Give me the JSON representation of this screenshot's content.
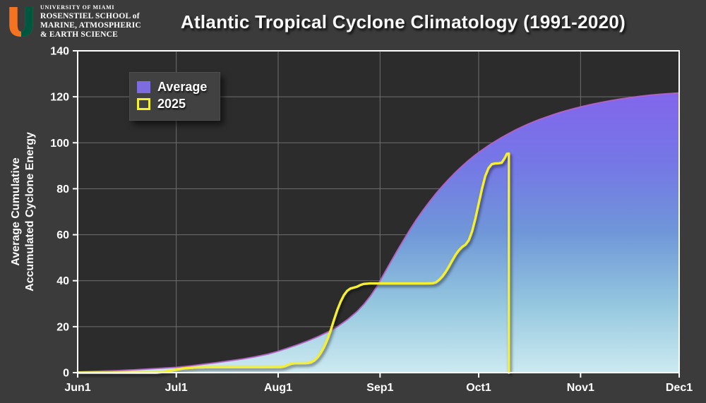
{
  "header": {
    "logo": {
      "university": "UNIVERSITY OF MIAMI",
      "school_line1": "ROSENSTIEL SCHOOL of",
      "school_line2": "MARINE, ATMOSPHERIC",
      "school_line3": "& EARTH SCIENCE",
      "orange": "#f47321",
      "green": "#00573f"
    },
    "title": "Atlantic Tropical Cyclone Climatology (1991-2020)"
  },
  "chart_data": {
    "type": "area",
    "title": "Atlantic Tropical Cyclone Climatology (1991-2020)",
    "ylabel_lines": [
      "Average Cumulative",
      "Accumulated Cyclone Energy"
    ],
    "xlabel": "",
    "x_units": "days since Jun 1",
    "xlim": [
      0,
      183
    ],
    "ylim": [
      0,
      140
    ],
    "x_ticks": [
      {
        "day": 0,
        "label": "Jun1"
      },
      {
        "day": 30,
        "label": "Jul1"
      },
      {
        "day": 61,
        "label": "Aug1"
      },
      {
        "day": 92,
        "label": "Sep1"
      },
      {
        "day": 122,
        "label": "Oct1"
      },
      {
        "day": 153,
        "label": "Nov1"
      },
      {
        "day": 183,
        "label": "Dec1"
      }
    ],
    "y_ticks": [
      0,
      20,
      40,
      60,
      80,
      100,
      120,
      140
    ],
    "grid": true,
    "legend_position": "top-left",
    "colors": {
      "figure_background": "#3b3b3b",
      "plot_background": "#2c2c2c",
      "grid": "#6f6f6f",
      "axis": "#ffffff",
      "tick_text": "#ffffff",
      "area_edge": "#b863c8",
      "line_2025": "#f5ef30",
      "legend_swatch_average": "#7d6ce0",
      "area_gradient": [
        {
          "offset": 0,
          "color": "#8266ec"
        },
        {
          "offset": 0.25,
          "color": "#7577e6"
        },
        {
          "offset": 0.5,
          "color": "#6f97d8"
        },
        {
          "offset": 0.75,
          "color": "#93c6de"
        },
        {
          "offset": 1,
          "color": "#cdeaf1"
        }
      ]
    },
    "series": [
      {
        "name": "Average",
        "type": "area",
        "points": [
          [
            0,
            0.3
          ],
          [
            6,
            0.6
          ],
          [
            12,
            0.9
          ],
          [
            18,
            1.3
          ],
          [
            24,
            1.8
          ],
          [
            30,
            2.3
          ],
          [
            34,
            2.9
          ],
          [
            38,
            3.6
          ],
          [
            42,
            4.3
          ],
          [
            46,
            5.1
          ],
          [
            50,
            5.9
          ],
          [
            54,
            6.9
          ],
          [
            58,
            8.1
          ],
          [
            61,
            9.3
          ],
          [
            64,
            10.7
          ],
          [
            67,
            12.2
          ],
          [
            70,
            13.8
          ],
          [
            73,
            15.6
          ],
          [
            76,
            17.6
          ],
          [
            79,
            20.0
          ],
          [
            82,
            23.0
          ],
          [
            85,
            26.6
          ],
          [
            87,
            29.6
          ],
          [
            89,
            33.2
          ],
          [
            91,
            37.4
          ],
          [
            93,
            42.5
          ],
          [
            95,
            47.5
          ],
          [
            97,
            52.5
          ],
          [
            99,
            57.3
          ],
          [
            101,
            62.0
          ],
          [
            103,
            66.4
          ],
          [
            105,
            70.5
          ],
          [
            107,
            74.3
          ],
          [
            109,
            77.9
          ],
          [
            111,
            81.2
          ],
          [
            113,
            84.3
          ],
          [
            115,
            87.2
          ],
          [
            117,
            89.9
          ],
          [
            119,
            92.4
          ],
          [
            121,
            94.7
          ],
          [
            123,
            96.8
          ],
          [
            125,
            98.8
          ],
          [
            127,
            100.6
          ],
          [
            129,
            102.3
          ],
          [
            131,
            103.9
          ],
          [
            133,
            105.4
          ],
          [
            135,
            106.8
          ],
          [
            137,
            108.1
          ],
          [
            139,
            109.3
          ],
          [
            141,
            110.4
          ],
          [
            143,
            111.4
          ],
          [
            145,
            112.4
          ],
          [
            147,
            113.3
          ],
          [
            149,
            114.1
          ],
          [
            151,
            114.9
          ],
          [
            153,
            115.6
          ],
          [
            156,
            116.6
          ],
          [
            159,
            117.5
          ],
          [
            162,
            118.3
          ],
          [
            165,
            119.0
          ],
          [
            168,
            119.6
          ],
          [
            171,
            120.2
          ],
          [
            174,
            120.7
          ],
          [
            177,
            121.1
          ],
          [
            180,
            121.4
          ],
          [
            183,
            121.7
          ]
        ]
      },
      {
        "name": "2025",
        "type": "line",
        "points": [
          [
            0,
            0
          ],
          [
            24,
            0
          ],
          [
            26,
            0.3
          ],
          [
            28,
            0.8
          ],
          [
            30,
            1.3
          ],
          [
            32,
            1.8
          ],
          [
            34,
            2.1
          ],
          [
            36,
            2.3
          ],
          [
            40,
            2.4
          ],
          [
            48,
            2.4
          ],
          [
            56,
            2.4
          ],
          [
            62,
            2.5
          ],
          [
            63,
            2.8
          ],
          [
            64,
            3.4
          ],
          [
            65,
            3.9
          ],
          [
            66,
            4.1
          ],
          [
            68,
            4.1
          ],
          [
            70,
            4.2
          ],
          [
            71,
            4.5
          ],
          [
            72,
            5.3
          ],
          [
            73,
            6.7
          ],
          [
            74,
            8.7
          ],
          [
            75,
            11.3
          ],
          [
            76,
            14.5
          ],
          [
            77,
            18.5
          ],
          [
            78,
            23.0
          ],
          [
            79,
            27.3
          ],
          [
            80,
            30.9
          ],
          [
            81,
            33.7
          ],
          [
            82,
            35.6
          ],
          [
            83,
            36.6
          ],
          [
            84,
            37.0
          ],
          [
            85,
            37.4
          ],
          [
            86,
            38.1
          ],
          [
            87,
            38.6
          ],
          [
            89,
            38.8
          ],
          [
            94,
            38.8
          ],
          [
            100,
            38.8
          ],
          [
            106,
            38.8
          ],
          [
            108,
            38.9
          ],
          [
            109,
            39.3
          ],
          [
            110,
            40.4
          ],
          [
            111,
            41.9
          ],
          [
            112,
            43.9
          ],
          [
            113,
            46.3
          ],
          [
            114,
            48.9
          ],
          [
            115,
            51.3
          ],
          [
            116,
            53.3
          ],
          [
            117,
            54.7
          ],
          [
            118,
            55.7
          ],
          [
            119,
            57.6
          ],
          [
            120,
            61.5
          ],
          [
            121,
            67.0
          ],
          [
            122,
            73.5
          ],
          [
            123,
            80.0
          ],
          [
            124,
            85.5
          ],
          [
            125,
            89.0
          ],
          [
            126,
            90.7
          ],
          [
            127,
            91.0
          ],
          [
            128,
            91.1
          ],
          [
            129,
            91.3
          ],
          [
            130,
            93.5
          ],
          [
            130.6,
            95.2
          ],
          [
            131.2,
            95.3
          ],
          [
            131.2,
            0
          ]
        ]
      }
    ]
  }
}
